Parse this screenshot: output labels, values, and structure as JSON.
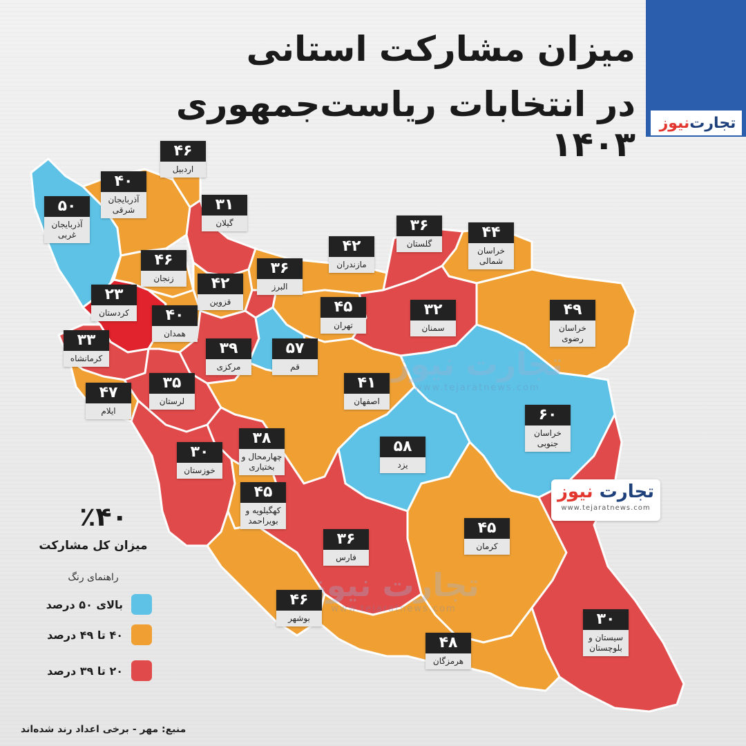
{
  "title": {
    "line1": "میزان مشارکت استانی",
    "line2": "در انتخابات ریاست‌جمهوری ۱۴۰۳"
  },
  "logo": {
    "name_part1": "تجارت",
    "name_part2": "نیوز",
    "website": "www.tejaratnews.com"
  },
  "summary": {
    "total_value": "٪۴۰",
    "total_label": "میزان کل مشارکت"
  },
  "legend": {
    "title": "راهنمای رنگ",
    "items": [
      {
        "label": "بالای ۵۰ درصد",
        "color": "#5ec2e6"
      },
      {
        "label": "۴۰ تا ۴۹ درصد",
        "color": "#f0a033"
      },
      {
        "label": "۲۰ تا ۳۹ درصد",
        "color": "#e14a4a"
      }
    ]
  },
  "colors": {
    "blue": "#5ec2e6",
    "orange": "#f0a033",
    "red": "#e14a4a",
    "kurdistan": "#e0232c",
    "header_blue": "#2b5fad"
  },
  "provinces": [
    {
      "id": "ardabil",
      "name": "اردبیل",
      "value": "۴۶",
      "num": 46
    },
    {
      "id": "east-azarbaijan",
      "name": "آذربایجان شرقی",
      "value": "۴۰",
      "num": 40
    },
    {
      "id": "west-azarbaijan",
      "name": "آذربایجان غربی",
      "value": "۵۰",
      "num": 50
    },
    {
      "id": "gilan",
      "name": "گیلان",
      "value": "۳۱",
      "num": 31
    },
    {
      "id": "golestan",
      "name": "گلستان",
      "value": "۳۶",
      "num": 36
    },
    {
      "id": "north-khorasan",
      "name": "خراسان شمالی",
      "value": "۴۴",
      "num": 44
    },
    {
      "id": "mazandaran",
      "name": "مازندران",
      "value": "۴۲",
      "num": 42
    },
    {
      "id": "zanjan",
      "name": "زنجان",
      "value": "۴۶",
      "num": 46
    },
    {
      "id": "alborz",
      "name": "البرز",
      "value": "۳۶",
      "num": 36
    },
    {
      "id": "qazvin",
      "name": "قزوین",
      "value": "۴۲",
      "num": 42
    },
    {
      "id": "kurdistan",
      "name": "کردستان",
      "value": "۲۳",
      "num": 23
    },
    {
      "id": "tehran",
      "name": "تهران",
      "value": "۴۵",
      "num": 45
    },
    {
      "id": "semnan",
      "name": "سمنان",
      "value": "۳۲",
      "num": 32
    },
    {
      "id": "razavi-khorasan",
      "name": "خراسان رضوی",
      "value": "۴۹",
      "num": 49
    },
    {
      "id": "hamadan",
      "name": "همدان",
      "value": "۴۰",
      "num": 40
    },
    {
      "id": "kermanshah",
      "name": "کرمانشاه",
      "value": "۳۳",
      "num": 33
    },
    {
      "id": "markazi",
      "name": "مرکزی",
      "value": "۳۹",
      "num": 39
    },
    {
      "id": "qom",
      "name": "قم",
      "value": "۵۷",
      "num": 57
    },
    {
      "id": "isfahan",
      "name": "اصفهان",
      "value": "۴۱",
      "num": 41
    },
    {
      "id": "ilam",
      "name": "ایلام",
      "value": "۴۷",
      "num": 47
    },
    {
      "id": "lorestan",
      "name": "لرستان",
      "value": "۳۵",
      "num": 35
    },
    {
      "id": "south-khorasan",
      "name": "خراسان جنوبی",
      "value": "۶۰",
      "num": 60
    },
    {
      "id": "chaharmahal",
      "name": "چهارمحال و بختیاری",
      "value": "۳۸",
      "num": 38
    },
    {
      "id": "khuzestan",
      "name": "خوزستان",
      "value": "۳۰",
      "num": 30
    },
    {
      "id": "yazd",
      "name": "یزد",
      "value": "۵۸",
      "num": 58
    },
    {
      "id": "kohgiluyeh",
      "name": "کهگیلویه و بویراحمد",
      "value": "۴۵",
      "num": 45
    },
    {
      "id": "kerman",
      "name": "کرمان",
      "value": "۴۵",
      "num": 45
    },
    {
      "id": "fars",
      "name": "فارس",
      "value": "۳۶",
      "num": 36
    },
    {
      "id": "bushehr",
      "name": "بوشهر",
      "value": "۴۶",
      "num": 46
    },
    {
      "id": "sistan",
      "name": "سیستان و بلوچستان",
      "value": "۳۰",
      "num": 30
    },
    {
      "id": "hormozgan",
      "name": "هرمزگان",
      "value": "۴۸",
      "num": 48
    }
  ],
  "source": "منبع: مهر - برخی اعداد رند شده‌اند"
}
